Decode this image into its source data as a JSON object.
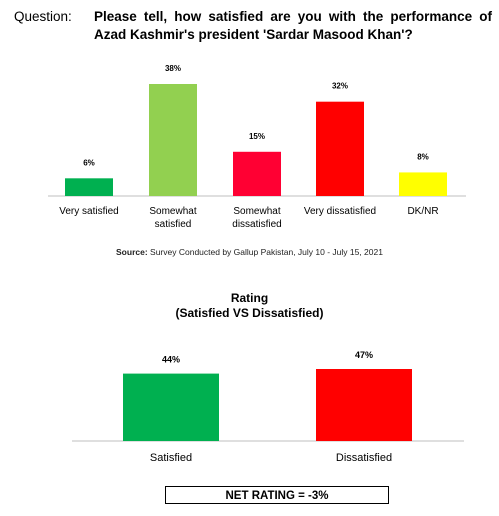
{
  "question": {
    "label": "Question:",
    "text": "Please tell, how satisfied are you with the performance of Azad Kashmir's president 'Sardar Masood Khan'?"
  },
  "source": {
    "prefix": "Source:",
    "text": " Survey Conducted by Gallup Pakistan, July 10 - July 15, 2021"
  },
  "rating": {
    "title_line1": "Rating",
    "title_line2": "(Satisfied VS Dissatisfied)"
  },
  "net_rating": "NET RATING = -3%",
  "chart_data": [
    {
      "type": "bar",
      "categories": [
        [
          "Very satisfied"
        ],
        [
          "Somewhat",
          "satisfied"
        ],
        [
          "Somewhat",
          "dissatisfied"
        ],
        [
          "Very dissatisfied"
        ],
        [
          "DK/NR"
        ]
      ],
      "values": [
        6,
        38,
        15,
        32,
        8
      ],
      "data_labels": [
        "6%",
        "38%",
        "15%",
        "32%",
        "8%"
      ],
      "colors": [
        "#00b050",
        "#92d050",
        "#ff0033",
        "#ff0000",
        "#ffff00"
      ],
      "ylim": [
        0,
        38
      ]
    },
    {
      "type": "bar",
      "categories": [
        [
          "Satisfied"
        ],
        [
          "Dissatisfied"
        ]
      ],
      "values": [
        44,
        47
      ],
      "data_labels": [
        "44%",
        "47%"
      ],
      "colors": [
        "#00b050",
        "#ff0000"
      ],
      "ylim": [
        0,
        47
      ]
    }
  ]
}
